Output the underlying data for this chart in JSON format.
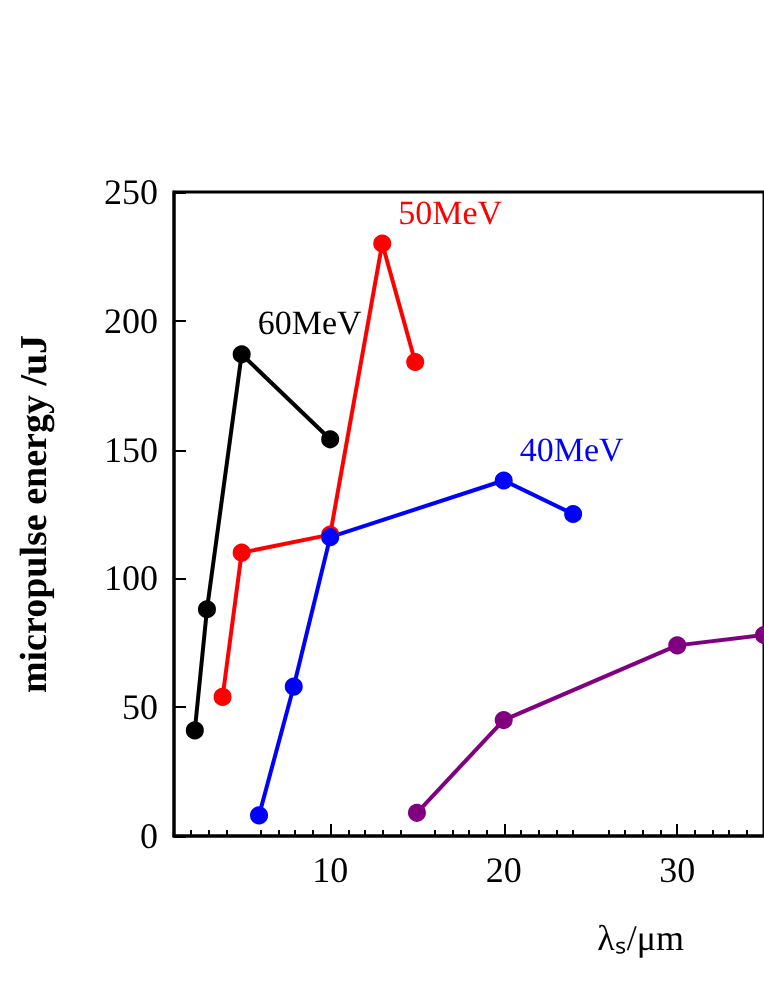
{
  "chart_data": {
    "type": "line",
    "xlabel": "λₛ/μm",
    "ylabel": "micropulse energy /uJ",
    "xlim": [
      1,
      35
    ],
    "xticks": [
      10,
      20,
      30
    ],
    "ylim": [
      0,
      250
    ],
    "yticks": [
      0,
      50,
      100,
      150,
      200,
      250
    ],
    "grid": false,
    "legend": false,
    "marker": "circle",
    "series": [
      {
        "name": "60MeV",
        "color": "#000000",
        "x": [
          2.2,
          2.9,
          4.9,
          10
        ],
        "values": [
          41,
          88,
          187,
          154
        ]
      },
      {
        "name": "50MeV",
        "color": "#ff0000",
        "x": [
          3.8,
          4.9,
          10,
          13,
          14.9
        ],
        "values": [
          54,
          110,
          117,
          230,
          184
        ]
      },
      {
        "name": "40MeV",
        "color": "#0000ff",
        "x": [
          5.9,
          7.9,
          10,
          20,
          24
        ],
        "values": [
          8,
          58,
          116,
          138,
          125
        ]
      },
      {
        "color": "#800080",
        "x": [
          15,
          20,
          30,
          35
        ],
        "values": [
          9,
          45,
          74,
          78
        ]
      }
    ]
  }
}
